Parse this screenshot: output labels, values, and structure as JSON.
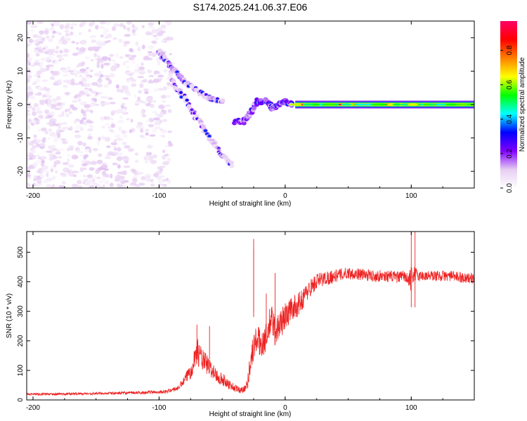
{
  "title": "S174.2025.241.06.37.E06",
  "chart_data": [
    {
      "type": "heatmap",
      "name": "spectrogram",
      "xlabel": "Height of straight line (km)",
      "ylabel": "Frequency (Hz)",
      "xlim": [
        -205,
        150
      ],
      "ylim": [
        -25,
        25
      ],
      "xticks": [
        -200,
        -100,
        0,
        100
      ],
      "yticks": [
        -20,
        -10,
        0,
        10,
        20
      ],
      "colorbar": {
        "label": "Normalized spectral amplitude",
        "range": [
          0,
          0.97
        ],
        "ticks": [
          0.0,
          0.2,
          0.4,
          0.6,
          0.8
        ],
        "tick_labels": [
          "0.0",
          "0.2",
          "0.4",
          "0.6",
          "0.8"
        ],
        "colormap": [
          "#ffffff",
          "#e6ccf2",
          "#8000ff",
          "#0000ff",
          "#00ffff",
          "#00ff00",
          "#ffff00",
          "#ff8000",
          "#ff0000",
          "#ff0066"
        ]
      },
      "noise_region": {
        "x": [
          -205,
          -90
        ],
        "amplitude_range": [
          0.02,
          0.12
        ]
      },
      "traces": [
        {
          "name": "upper-branch",
          "points": [
            [
              -100,
              16
            ],
            [
              -95,
              13
            ],
            [
              -87,
              10
            ],
            [
              -80,
              7
            ],
            [
              -70,
              4
            ],
            [
              -60,
              2
            ],
            [
              -50,
              1
            ]
          ],
          "amplitude": 0.2
        },
        {
          "name": "lower-branch",
          "points": [
            [
              -90,
              7
            ],
            [
              -80,
              2
            ],
            [
              -70,
              -4
            ],
            [
              -60,
              -10
            ],
            [
              -50,
              -15
            ],
            [
              -42,
              -18
            ]
          ],
          "amplitude": 0.18
        },
        {
          "name": "transition",
          "points": [
            [
              -40,
              -5
            ],
            [
              -33,
              -5
            ],
            [
              -28,
              -3
            ],
            [
              -22,
              1
            ],
            [
              -15,
              1
            ],
            [
              -10,
              -1
            ],
            [
              -5,
              0
            ],
            [
              0,
              1
            ],
            [
              5,
              0
            ]
          ],
          "amplitude": 0.3
        },
        {
          "name": "carrier",
          "points": [
            [
              8,
              0
            ],
            [
              150,
              0
            ]
          ],
          "amplitude": 0.95
        }
      ]
    },
    {
      "type": "line",
      "name": "snr",
      "xlabel": "Height of straight line (km)",
      "ylabel": "SNR (10 * v/v)",
      "xlim": [
        -205,
        150
      ],
      "ylim": [
        0,
        570
      ],
      "xticks": [
        -200,
        -100,
        0,
        100
      ],
      "yticks": [
        0,
        100,
        200,
        300,
        400,
        500
      ],
      "color": "#ee2222",
      "series": [
        {
          "name": "SNR",
          "x": [
            -205,
            -180,
            -150,
            -120,
            -95,
            -85,
            -80,
            -75,
            -72,
            -70,
            -68,
            -65,
            -62,
            -60,
            -55,
            -50,
            -45,
            -40,
            -35,
            -30,
            -28,
            -25,
            -22,
            -20,
            -17,
            -15,
            -12,
            -10,
            -8,
            -5,
            -2,
            0,
            5,
            10,
            15,
            20,
            25,
            30,
            35,
            40,
            50,
            60,
            70,
            80,
            90,
            95,
            98,
            100,
            102,
            105,
            110,
            120,
            130,
            140,
            150
          ],
          "y": [
            20,
            20,
            22,
            24,
            28,
            40,
            65,
            100,
            140,
            165,
            155,
            130,
            120,
            110,
            85,
            70,
            55,
            40,
            32,
            50,
            120,
            180,
            210,
            190,
            200,
            210,
            260,
            270,
            230,
            250,
            270,
            280,
            310,
            320,
            350,
            380,
            400,
            410,
            415,
            420,
            430,
            425,
            420,
            420,
            415,
            420,
            400,
            410,
            430,
            420,
            420,
            420,
            420,
            415,
            410
          ],
          "noise": [
            4,
            4,
            4,
            5,
            6,
            8,
            15,
            30,
            40,
            45,
            45,
            40,
            35,
            30,
            25,
            22,
            18,
            14,
            10,
            20,
            40,
            50,
            50,
            50,
            50,
            50,
            60,
            60,
            50,
            50,
            50,
            50,
            40,
            40,
            35,
            30,
            30,
            25,
            25,
            22,
            20,
            20,
            20,
            20,
            20,
            20,
            30,
            40,
            30,
            20,
            18,
            18,
            18,
            18,
            18
          ]
        }
      ],
      "spikes": [
        [
          -25,
          545
        ],
        [
          -25,
          510
        ],
        [
          -15,
          360
        ],
        [
          -8,
          430
        ],
        [
          -60,
          250
        ],
        [
          -70,
          255
        ],
        [
          100,
          570
        ],
        [
          103,
          570
        ]
      ]
    }
  ]
}
